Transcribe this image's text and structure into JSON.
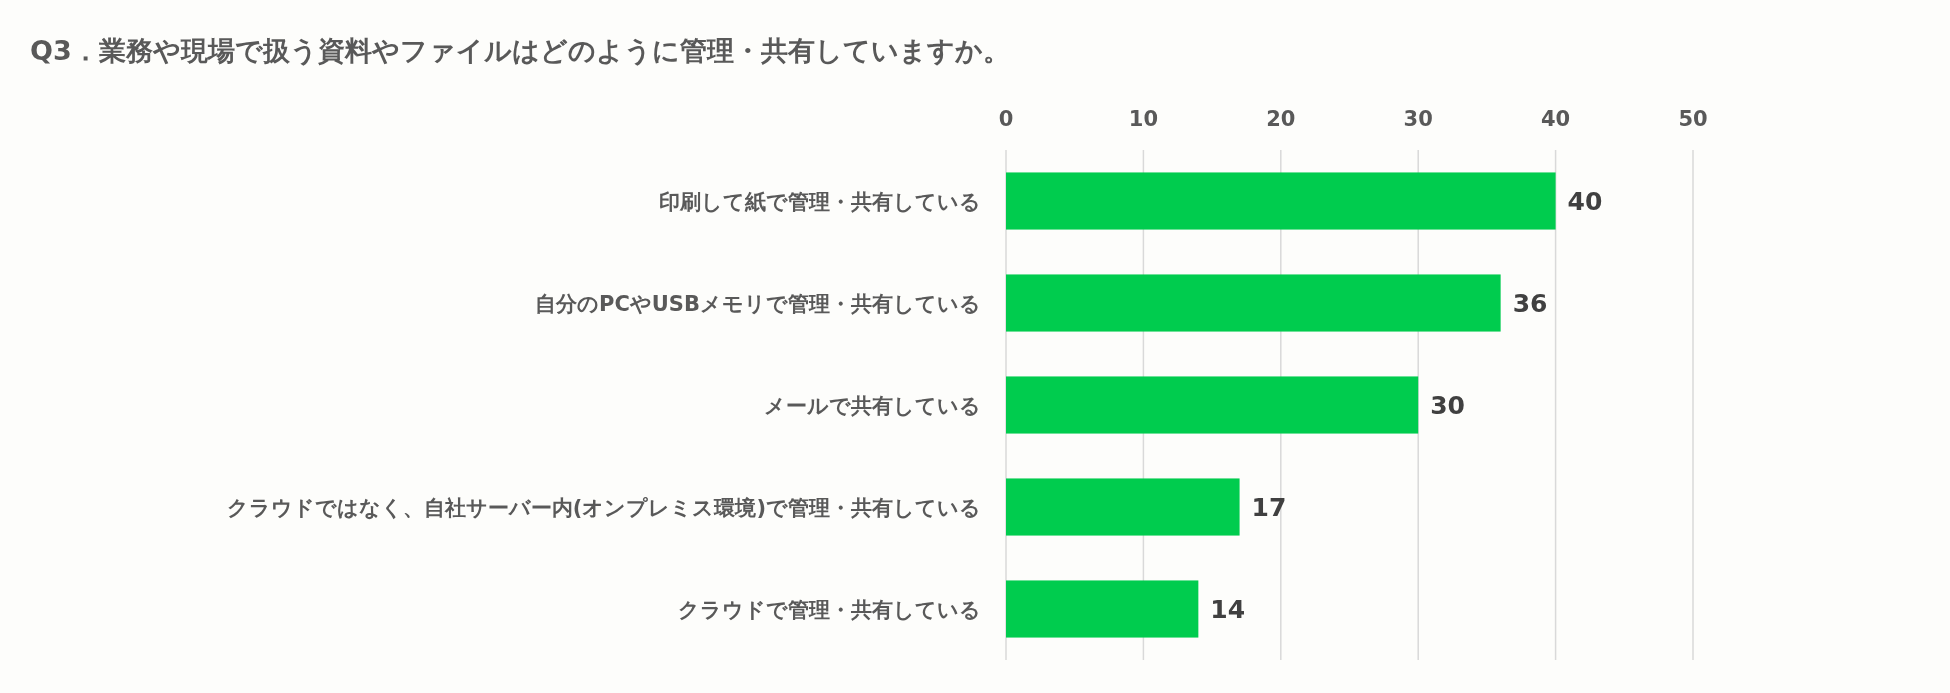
{
  "chart_data": {
    "type": "bar",
    "orientation": "horizontal",
    "title": "Q3．業務や現場で扱う資料やファイルはどのように管理・共有していますか。",
    "categories": [
      "印刷して紙で管理・共有している",
      "自分のPCやUSBメモリで管理・共有している",
      "メールで共有している",
      "クラウドではなく、自社サーバー内(オンプレミス環境)で管理・共有している",
      "クラウドで管理・共有している"
    ],
    "values": [
      40,
      36,
      30,
      17,
      14
    ],
    "color": "#00cc4e",
    "xlim": [
      0,
      50
    ],
    "xticks": [
      0,
      10,
      20,
      30,
      40,
      50
    ],
    "grid": "x",
    "data_labels": true
  }
}
